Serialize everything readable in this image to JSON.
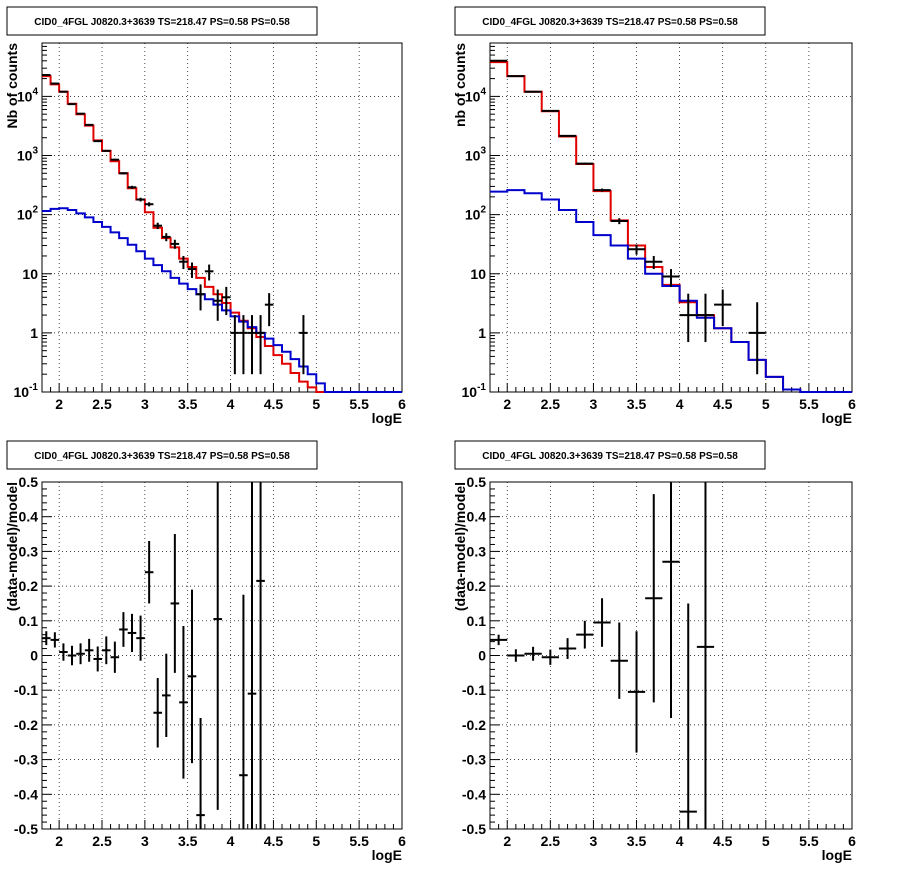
{
  "chart_data": [
    {
      "type": "line",
      "title": "CID0_4FGL J0820.3+3639 TS=218.47 PS=0.58 PS=0.58",
      "xlabel": "logE",
      "ylabel": "Nb of counts",
      "xlim": [
        1.8,
        6
      ],
      "ylim": [
        0.1,
        80000
      ],
      "yscale": "log",
      "grid": true,
      "x_ticks": [
        "2",
        "2.5",
        "3",
        "3.5",
        "4",
        "4.5",
        "5",
        "5.5",
        "6"
      ],
      "y_ticks": [
        "10^{-1}",
        "1",
        "10",
        "10^{2}",
        "10^{3}",
        "10^{4}"
      ],
      "bin_width": 0.1,
      "series": [
        {
          "color": "#e00000",
          "kind": "step",
          "x": [
            1.85,
            1.95,
            2.05,
            2.15,
            2.25,
            2.35,
            2.45,
            2.55,
            2.65,
            2.75,
            2.85,
            2.95,
            3.05,
            3.15,
            3.25,
            3.35,
            3.45,
            3.55,
            3.65,
            3.75,
            3.85,
            3.95,
            4.05,
            4.15,
            4.25,
            4.35,
            4.45,
            4.55,
            4.65,
            4.75,
            4.85,
            4.95,
            5.05,
            5.15,
            5.25,
            5.35,
            5.45,
            5.55,
            5.65,
            5.75,
            5.85,
            5.95
          ],
          "y": [
            22000,
            16000,
            12000,
            7500,
            5000,
            3200,
            1800,
            1200,
            800,
            500,
            280,
            180,
            110,
            60,
            40,
            28,
            18,
            13,
            8.5,
            6,
            4.5,
            3.2,
            2.2,
            1.6,
            1.2,
            0.85,
            0.6,
            0.42,
            0.3,
            0.21,
            0.15,
            0.12,
            0.1,
            0.1,
            0.1,
            0.1,
            0.1,
            0.1,
            0.1,
            0.1,
            0.1,
            0.1
          ]
        },
        {
          "color": "#0000cc",
          "kind": "step",
          "x": [
            1.85,
            1.95,
            2.05,
            2.15,
            2.25,
            2.35,
            2.45,
            2.55,
            2.65,
            2.75,
            2.85,
            2.95,
            3.05,
            3.15,
            3.25,
            3.35,
            3.45,
            3.55,
            3.65,
            3.75,
            3.85,
            3.95,
            4.05,
            4.15,
            4.25,
            4.35,
            4.45,
            4.55,
            4.65,
            4.75,
            4.85,
            4.95,
            5.05,
            5.15,
            5.25,
            5.35,
            5.45,
            5.55,
            5.65,
            5.75,
            5.85,
            5.95
          ],
          "y": [
            115,
            125,
            128,
            120,
            105,
            90,
            75,
            62,
            50,
            40,
            31,
            24,
            18,
            14,
            11,
            8.5,
            6.8,
            5.5,
            4.5,
            3.7,
            3.0,
            2.4,
            1.9,
            1.55,
            1.25,
            1.0,
            0.8,
            0.62,
            0.48,
            0.36,
            0.27,
            0.2,
            0.14,
            0.1,
            0.1,
            0.1,
            0.1,
            0.1,
            0.1,
            0.1,
            0.1,
            0.1
          ]
        },
        {
          "color": "#000000",
          "kind": "points",
          "x": [
            1.85,
            1.95,
            2.05,
            2.15,
            2.25,
            2.35,
            2.45,
            2.55,
            2.65,
            2.75,
            2.85,
            2.95,
            3.05,
            3.15,
            3.25,
            3.35,
            3.45,
            3.55,
            3.65,
            3.75,
            3.85,
            3.95,
            4.05,
            4.15,
            4.25,
            4.35,
            4.45,
            4.85
          ],
          "y": [
            23000,
            16500,
            12000,
            7400,
            5100,
            3300,
            1750,
            1200,
            850,
            500,
            290,
            180,
            150,
            65,
            42,
            32,
            16,
            12,
            4.5,
            11,
            3.5,
            4.0,
            1.0,
            1.0,
            1.0,
            1.0,
            3.0,
            1.0
          ],
          "yerr_lo": [
            150,
            130,
            110,
            85,
            70,
            57,
            42,
            35,
            29,
            22,
            17,
            13,
            12,
            8,
            6.5,
            5.6,
            4,
            3.5,
            2.1,
            3.3,
            1.9,
            2,
            0.8,
            0.8,
            0.8,
            0.8,
            1.7,
            0.8
          ],
          "yerr_hi": [
            150,
            130,
            110,
            85,
            70,
            57,
            42,
            35,
            29,
            22,
            17,
            13,
            12,
            8,
            6.5,
            5.6,
            4,
            3.5,
            2.1,
            3.3,
            1.9,
            2,
            1,
            1,
            1,
            1,
            1.7,
            1
          ]
        }
      ]
    },
    {
      "type": "line",
      "title": "CID0_4FGL J0820.3+3639 TS=218.47 PS=0.58 PS=0.58",
      "xlabel": "logE",
      "ylabel": "nb of counts",
      "xlim": [
        1.8,
        6
      ],
      "ylim": [
        0.1,
        80000
      ],
      "yscale": "log",
      "grid": true,
      "x_ticks": [
        "2",
        "2.5",
        "3",
        "3.5",
        "4",
        "4.5",
        "5",
        "5.5",
        "6"
      ],
      "y_ticks": [
        "10^{-1}",
        "1",
        "10",
        "10^{2}",
        "10^{3}",
        "10^{4}"
      ],
      "bin_width": 0.2,
      "series": [
        {
          "color": "#e00000",
          "kind": "step",
          "x": [
            1.9,
            2.1,
            2.3,
            2.5,
            2.7,
            2.9,
            3.1,
            3.3,
            3.5,
            3.7,
            3.9,
            4.1,
            4.3,
            4.5,
            4.7,
            4.9,
            5.1,
            5.3,
            5.5,
            5.7,
            5.9
          ],
          "y": [
            38000,
            22000,
            12000,
            5600,
            2100,
            720,
            250,
            80,
            30,
            13,
            6.5,
            3.3,
            2.0,
            1.2,
            0.7,
            0.35,
            0.18,
            0.11,
            0.1,
            0.1,
            0.1
          ]
        },
        {
          "color": "#0000cc",
          "kind": "step",
          "x": [
            1.9,
            2.1,
            2.3,
            2.5,
            2.7,
            2.9,
            3.1,
            3.3,
            3.5,
            3.7,
            3.9,
            4.1,
            4.3,
            4.5,
            4.7,
            4.9,
            5.1,
            5.3,
            5.5,
            5.7,
            5.9
          ],
          "y": [
            245,
            260,
            230,
            180,
            120,
            75,
            45,
            30,
            18,
            10,
            6.2,
            3.5,
            1.8,
            1.2,
            0.7,
            0.35,
            0.18,
            0.11,
            0.1,
            0.1,
            0.1
          ]
        },
        {
          "color": "#000000",
          "kind": "points",
          "x": [
            1.9,
            2.1,
            2.3,
            2.5,
            2.7,
            2.9,
            3.1,
            3.3,
            3.5,
            3.7,
            3.9,
            4.1,
            4.3,
            4.5,
            4.9
          ],
          "y": [
            40000,
            22000,
            12000,
            5700,
            2150,
            730,
            260,
            78,
            26,
            16,
            9,
            2,
            2,
            3,
            1
          ],
          "yerr_lo": [
            200,
            150,
            110,
            75,
            46,
            27,
            16,
            9,
            5,
            4,
            3,
            1.3,
            1.3,
            1.7,
            0.8
          ],
          "yerr_hi": [
            200,
            150,
            110,
            75,
            46,
            27,
            16,
            9,
            5,
            4,
            3,
            2.6,
            2.6,
            2.4,
            2.3
          ]
        }
      ]
    },
    {
      "type": "scatter",
      "title": "CID0_4FGL J0820.3+3639 TS=218.47 PS=0.58 PS=0.58",
      "xlabel": "logE",
      "ylabel": "(data-model)/model",
      "xlim": [
        1.8,
        6
      ],
      "ylim": [
        -0.5,
        0.5
      ],
      "grid": true,
      "x_ticks": [
        "2",
        "2.5",
        "3",
        "3.5",
        "4",
        "4.5",
        "5",
        "5.5",
        "6"
      ],
      "y_ticks": [
        "-0.5",
        "-0.4",
        "-0.3",
        "-0.2",
        "-0.1",
        "0",
        "0.1",
        "0.2",
        "0.3",
        "0.4",
        "0.5"
      ],
      "bin_width": 0.1,
      "series": [
        {
          "color": "#000000",
          "kind": "points",
          "x": [
            1.85,
            1.95,
            2.05,
            2.15,
            2.25,
            2.35,
            2.45,
            2.55,
            2.65,
            2.75,
            2.85,
            2.95,
            3.05,
            3.15,
            3.25,
            3.35,
            3.45,
            3.55,
            3.65,
            3.85,
            4.15,
            4.25,
            4.35
          ],
          "y": [
            0.05,
            0.045,
            0.01,
            0.0,
            0.005,
            0.015,
            -0.01,
            0.015,
            -0.005,
            0.075,
            0.065,
            0.05,
            0.24,
            -0.165,
            -0.115,
            0.15,
            -0.135,
            -0.06,
            -0.46,
            0.105,
            -0.345,
            -0.11,
            0.215
          ],
          "yerr": [
            0.02,
            0.022,
            0.025,
            0.028,
            0.03,
            0.033,
            0.036,
            0.04,
            0.045,
            0.05,
            0.055,
            0.065,
            0.09,
            0.1,
            0.12,
            0.2,
            0.22,
            0.25,
            0.28,
            0.55,
            0.52,
            0.7,
            0.8
          ]
        }
      ]
    },
    {
      "type": "scatter",
      "title": "CID0_4FGL J0820.3+3639 TS=218.47 PS=0.58 PS=0.58",
      "xlabel": "logE",
      "ylabel": "(data-model)/model",
      "xlim": [
        1.8,
        6
      ],
      "ylim": [
        -0.5,
        0.5
      ],
      "grid": true,
      "x_ticks": [
        "2",
        "2.5",
        "3",
        "3.5",
        "4",
        "4.5",
        "5",
        "5.5",
        "6"
      ],
      "y_ticks": [
        "-0.5",
        "-0.4",
        "-0.3",
        "-0.2",
        "-0.1",
        "0",
        "0.1",
        "0.2",
        "0.3",
        "0.4",
        "0.5"
      ],
      "bin_width": 0.2,
      "series": [
        {
          "color": "#000000",
          "kind": "points",
          "x": [
            1.9,
            2.1,
            2.3,
            2.5,
            2.7,
            2.9,
            3.1,
            3.3,
            3.5,
            3.7,
            3.9,
            4.1,
            4.3
          ],
          "y": [
            0.045,
            0.0,
            0.005,
            -0.005,
            0.02,
            0.06,
            0.095,
            -0.015,
            -0.105,
            0.165,
            0.27,
            -0.45,
            0.025
          ],
          "yerr": [
            0.015,
            0.018,
            0.02,
            0.022,
            0.03,
            0.04,
            0.07,
            0.11,
            0.175,
            0.3,
            0.45,
            0.6,
            0.75
          ]
        }
      ]
    }
  ]
}
